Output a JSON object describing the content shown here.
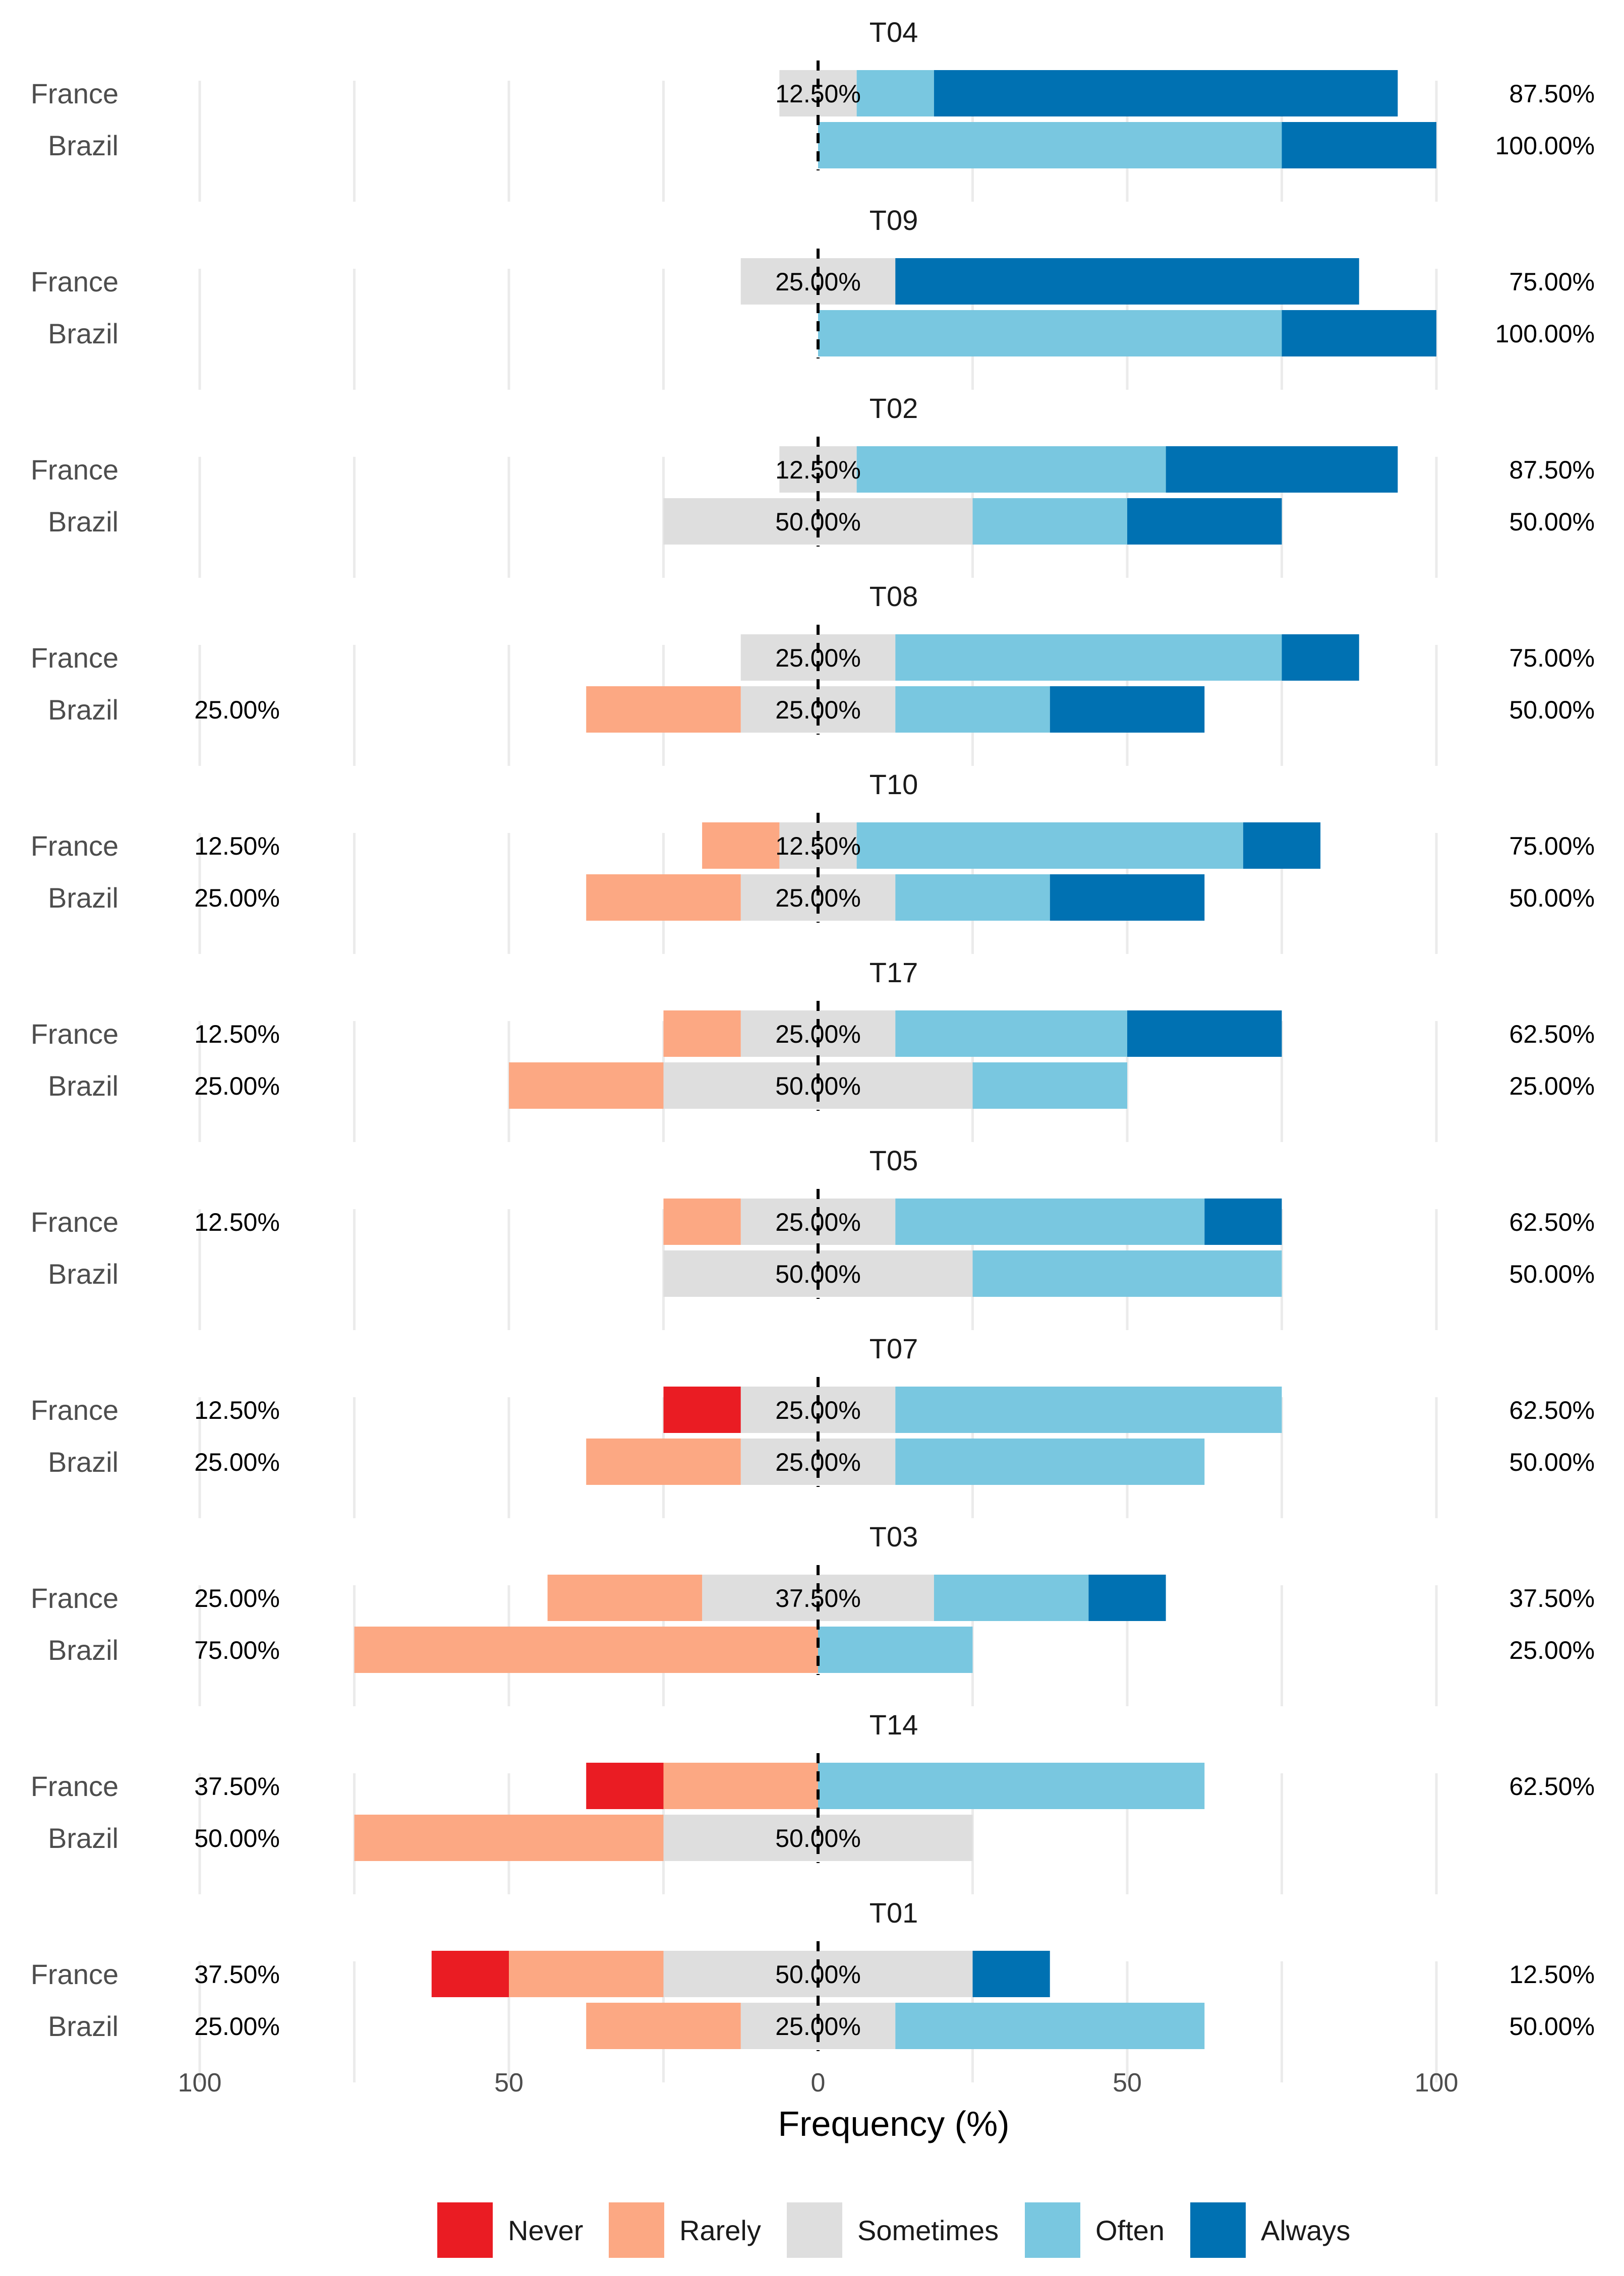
{
  "chart_data": {
    "type": "bar",
    "subtype": "diverging-stacked-likert",
    "xlabel": "Frequency (%)",
    "x_ticks": [
      {
        "value": -100,
        "label": "100"
      },
      {
        "value": -50,
        "label": "50"
      },
      {
        "value": 0,
        "label": "0"
      },
      {
        "value": 50,
        "label": "50"
      },
      {
        "value": 100,
        "label": "100"
      }
    ],
    "xlim": [
      -100,
      100
    ],
    "legend_position": "bottom",
    "legend": [
      {
        "label": "Never",
        "color": "#ea1c23"
      },
      {
        "label": "Rarely",
        "color": "#fca883"
      },
      {
        "label": "Sometimes",
        "color": "#dedede"
      },
      {
        "label": "Often",
        "color": "#79c7e0"
      },
      {
        "label": "Always",
        "color": "#0071b2"
      }
    ],
    "categories_order": [
      "Never",
      "Rarely",
      "Sometimes",
      "Often",
      "Always"
    ],
    "panels": [
      {
        "title": "T04",
        "rows": [
          {
            "group": "France",
            "values": [
              0,
              0,
              12.5,
              12.5,
              75
            ],
            "left_label": "",
            "center_label": "12.50%",
            "right_label": "87.50%"
          },
          {
            "group": "Brazil",
            "values": [
              0,
              0,
              0,
              75,
              25
            ],
            "left_label": "",
            "center_label": "",
            "right_label": "100.00%"
          }
        ]
      },
      {
        "title": "T09",
        "rows": [
          {
            "group": "France",
            "values": [
              0,
              0,
              25,
              0,
              75
            ],
            "left_label": "",
            "center_label": "25.00%",
            "right_label": "75.00%"
          },
          {
            "group": "Brazil",
            "values": [
              0,
              0,
              0,
              75,
              25
            ],
            "left_label": "",
            "center_label": "",
            "right_label": "100.00%"
          }
        ]
      },
      {
        "title": "T02",
        "rows": [
          {
            "group": "France",
            "values": [
              0,
              0,
              12.5,
              50,
              37.5
            ],
            "left_label": "",
            "center_label": "12.50%",
            "right_label": "87.50%"
          },
          {
            "group": "Brazil",
            "values": [
              0,
              0,
              50,
              25,
              25
            ],
            "left_label": "",
            "center_label": "50.00%",
            "right_label": "50.00%"
          }
        ]
      },
      {
        "title": "T08",
        "rows": [
          {
            "group": "France",
            "values": [
              0,
              0,
              25,
              62.5,
              12.5
            ],
            "left_label": "",
            "center_label": "25.00%",
            "right_label": "75.00%"
          },
          {
            "group": "Brazil",
            "values": [
              0,
              25,
              25,
              25,
              25
            ],
            "left_label": "25.00%",
            "center_label": "25.00%",
            "right_label": "50.00%"
          }
        ]
      },
      {
        "title": "T10",
        "rows": [
          {
            "group": "France",
            "values": [
              0,
              12.5,
              12.5,
              62.5,
              12.5
            ],
            "left_label": "12.50%",
            "center_label": "12.50%",
            "right_label": "75.00%"
          },
          {
            "group": "Brazil",
            "values": [
              0,
              25,
              25,
              25,
              25
            ],
            "left_label": "25.00%",
            "center_label": "25.00%",
            "right_label": "50.00%"
          }
        ]
      },
      {
        "title": "T17",
        "rows": [
          {
            "group": "France",
            "values": [
              0,
              12.5,
              25,
              37.5,
              25
            ],
            "left_label": "12.50%",
            "center_label": "25.00%",
            "right_label": "62.50%"
          },
          {
            "group": "Brazil",
            "values": [
              0,
              25,
              50,
              25,
              0
            ],
            "left_label": "25.00%",
            "center_label": "50.00%",
            "right_label": "25.00%"
          }
        ]
      },
      {
        "title": "T05",
        "rows": [
          {
            "group": "France",
            "values": [
              0,
              12.5,
              25,
              50,
              12.5
            ],
            "left_label": "12.50%",
            "center_label": "25.00%",
            "right_label": "62.50%"
          },
          {
            "group": "Brazil",
            "values": [
              0,
              0,
              50,
              50,
              0
            ],
            "left_label": "",
            "center_label": "50.00%",
            "right_label": "50.00%"
          }
        ]
      },
      {
        "title": "T07",
        "rows": [
          {
            "group": "France",
            "values": [
              12.5,
              0,
              25,
              62.5,
              0
            ],
            "left_label": "12.50%",
            "center_label": "25.00%",
            "right_label": "62.50%"
          },
          {
            "group": "Brazil",
            "values": [
              0,
              25,
              25,
              50,
              0
            ],
            "left_label": "25.00%",
            "center_label": "25.00%",
            "right_label": "50.00%"
          }
        ]
      },
      {
        "title": "T03",
        "rows": [
          {
            "group": "France",
            "values": [
              0,
              25,
              37.5,
              25,
              12.5
            ],
            "left_label": "25.00%",
            "center_label": "37.50%",
            "right_label": "37.50%"
          },
          {
            "group": "Brazil",
            "values": [
              0,
              75,
              0,
              25,
              0
            ],
            "left_label": "75.00%",
            "center_label": "",
            "right_label": "25.00%"
          }
        ]
      },
      {
        "title": "T14",
        "rows": [
          {
            "group": "France",
            "values": [
              12.5,
              25,
              0,
              62.5,
              0
            ],
            "left_label": "37.50%",
            "center_label": "",
            "right_label": "62.50%"
          },
          {
            "group": "Brazil",
            "values": [
              0,
              50,
              50,
              0,
              0
            ],
            "left_label": "50.00%",
            "center_label": "50.00%",
            "right_label": ""
          }
        ]
      },
      {
        "title": "T01",
        "rows": [
          {
            "group": "France",
            "values": [
              12.5,
              25,
              50,
              0,
              12.5
            ],
            "left_label": "37.50%",
            "center_label": "50.00%",
            "right_label": "12.50%"
          },
          {
            "group": "Brazil",
            "values": [
              0,
              25,
              25,
              50,
              0
            ],
            "left_label": "25.00%",
            "center_label": "25.00%",
            "right_label": "50.00%"
          }
        ]
      }
    ]
  }
}
